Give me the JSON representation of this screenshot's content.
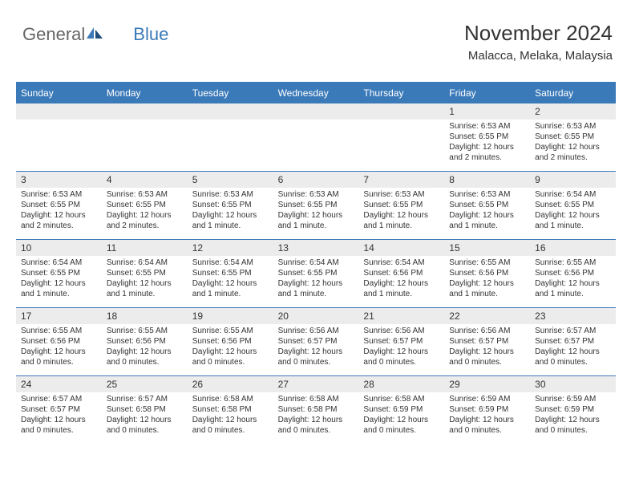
{
  "logo": {
    "part1": "General",
    "part2": "Blue"
  },
  "header": {
    "month": "November 2024",
    "location": "Malacca, Melaka, Malaysia"
  },
  "colors": {
    "accent": "#3b7ab8",
    "header_bg": "#3b7ab8",
    "daynum_bg": "#ececec",
    "text": "#333333",
    "logo_gray": "#666666"
  },
  "day_names": [
    "Sunday",
    "Monday",
    "Tuesday",
    "Wednesday",
    "Thursday",
    "Friday",
    "Saturday"
  ],
  "weeks": [
    [
      null,
      null,
      null,
      null,
      null,
      {
        "n": "1",
        "sr": "6:53 AM",
        "ss": "6:55 PM",
        "dl": "12 hours and 2 minutes."
      },
      {
        "n": "2",
        "sr": "6:53 AM",
        "ss": "6:55 PM",
        "dl": "12 hours and 2 minutes."
      }
    ],
    [
      {
        "n": "3",
        "sr": "6:53 AM",
        "ss": "6:55 PM",
        "dl": "12 hours and 2 minutes."
      },
      {
        "n": "4",
        "sr": "6:53 AM",
        "ss": "6:55 PM",
        "dl": "12 hours and 2 minutes."
      },
      {
        "n": "5",
        "sr": "6:53 AM",
        "ss": "6:55 PM",
        "dl": "12 hours and 1 minute."
      },
      {
        "n": "6",
        "sr": "6:53 AM",
        "ss": "6:55 PM",
        "dl": "12 hours and 1 minute."
      },
      {
        "n": "7",
        "sr": "6:53 AM",
        "ss": "6:55 PM",
        "dl": "12 hours and 1 minute."
      },
      {
        "n": "8",
        "sr": "6:53 AM",
        "ss": "6:55 PM",
        "dl": "12 hours and 1 minute."
      },
      {
        "n": "9",
        "sr": "6:54 AM",
        "ss": "6:55 PM",
        "dl": "12 hours and 1 minute."
      }
    ],
    [
      {
        "n": "10",
        "sr": "6:54 AM",
        "ss": "6:55 PM",
        "dl": "12 hours and 1 minute."
      },
      {
        "n": "11",
        "sr": "6:54 AM",
        "ss": "6:55 PM",
        "dl": "12 hours and 1 minute."
      },
      {
        "n": "12",
        "sr": "6:54 AM",
        "ss": "6:55 PM",
        "dl": "12 hours and 1 minute."
      },
      {
        "n": "13",
        "sr": "6:54 AM",
        "ss": "6:55 PM",
        "dl": "12 hours and 1 minute."
      },
      {
        "n": "14",
        "sr": "6:54 AM",
        "ss": "6:56 PM",
        "dl": "12 hours and 1 minute."
      },
      {
        "n": "15",
        "sr": "6:55 AM",
        "ss": "6:56 PM",
        "dl": "12 hours and 1 minute."
      },
      {
        "n": "16",
        "sr": "6:55 AM",
        "ss": "6:56 PM",
        "dl": "12 hours and 1 minute."
      }
    ],
    [
      {
        "n": "17",
        "sr": "6:55 AM",
        "ss": "6:56 PM",
        "dl": "12 hours and 0 minutes."
      },
      {
        "n": "18",
        "sr": "6:55 AM",
        "ss": "6:56 PM",
        "dl": "12 hours and 0 minutes."
      },
      {
        "n": "19",
        "sr": "6:55 AM",
        "ss": "6:56 PM",
        "dl": "12 hours and 0 minutes."
      },
      {
        "n": "20",
        "sr": "6:56 AM",
        "ss": "6:57 PM",
        "dl": "12 hours and 0 minutes."
      },
      {
        "n": "21",
        "sr": "6:56 AM",
        "ss": "6:57 PM",
        "dl": "12 hours and 0 minutes."
      },
      {
        "n": "22",
        "sr": "6:56 AM",
        "ss": "6:57 PM",
        "dl": "12 hours and 0 minutes."
      },
      {
        "n": "23",
        "sr": "6:57 AM",
        "ss": "6:57 PM",
        "dl": "12 hours and 0 minutes."
      }
    ],
    [
      {
        "n": "24",
        "sr": "6:57 AM",
        "ss": "6:57 PM",
        "dl": "12 hours and 0 minutes."
      },
      {
        "n": "25",
        "sr": "6:57 AM",
        "ss": "6:58 PM",
        "dl": "12 hours and 0 minutes."
      },
      {
        "n": "26",
        "sr": "6:58 AM",
        "ss": "6:58 PM",
        "dl": "12 hours and 0 minutes."
      },
      {
        "n": "27",
        "sr": "6:58 AM",
        "ss": "6:58 PM",
        "dl": "12 hours and 0 minutes."
      },
      {
        "n": "28",
        "sr": "6:58 AM",
        "ss": "6:59 PM",
        "dl": "12 hours and 0 minutes."
      },
      {
        "n": "29",
        "sr": "6:59 AM",
        "ss": "6:59 PM",
        "dl": "12 hours and 0 minutes."
      },
      {
        "n": "30",
        "sr": "6:59 AM",
        "ss": "6:59 PM",
        "dl": "12 hours and 0 minutes."
      }
    ]
  ],
  "labels": {
    "sunrise": "Sunrise: ",
    "sunset": "Sunset: ",
    "daylight": "Daylight: "
  }
}
